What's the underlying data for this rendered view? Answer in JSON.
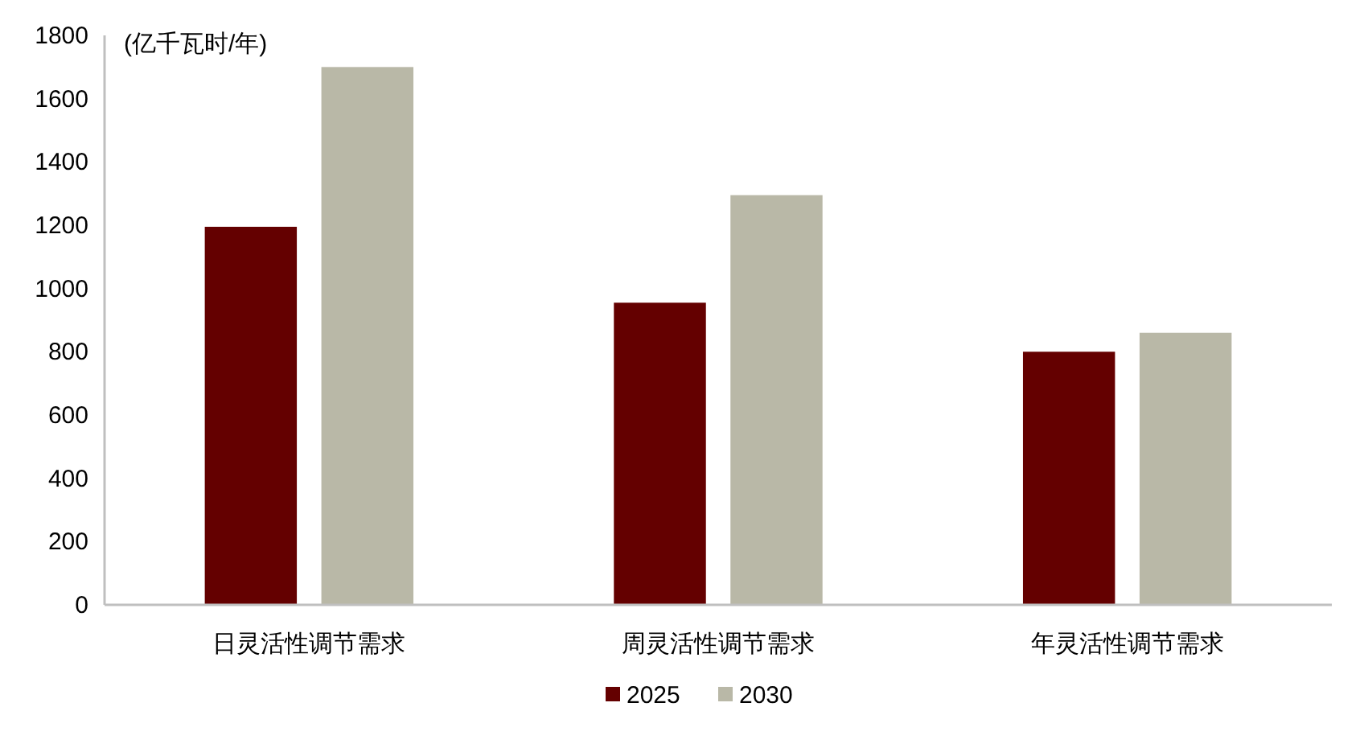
{
  "chart_data": {
    "type": "bar",
    "ylabel": "(亿千瓦时/年)",
    "categories": [
      "日灵活性调节需求",
      "周灵活性调节需求",
      "年灵活性调节需求"
    ],
    "series": [
      {
        "name": "2025",
        "color": "#640000",
        "values": [
          1195,
          955,
          800
        ]
      },
      {
        "name": "2030",
        "color": "#b9b8a7",
        "values": [
          1700,
          1295,
          860
        ]
      }
    ],
    "ylim": [
      0,
      1800
    ],
    "yticks": [
      0,
      200,
      400,
      600,
      800,
      1000,
      1200,
      1400,
      1600,
      1800
    ],
    "grid": false,
    "legend": "bottom"
  }
}
